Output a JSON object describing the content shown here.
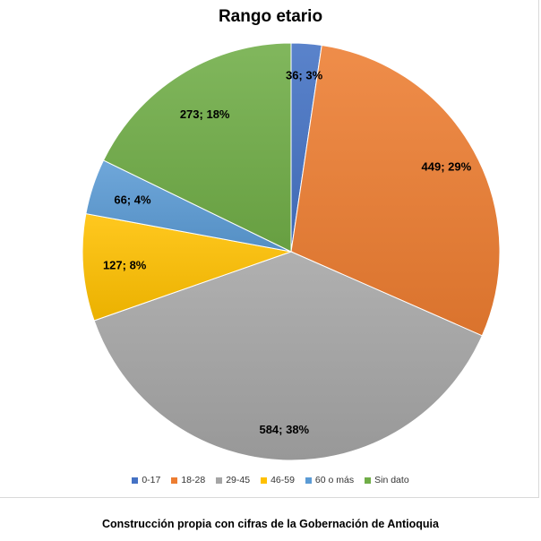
{
  "chart_data": {
    "type": "pie",
    "title": "Rango etario",
    "categories": [
      "0-17",
      "18-28",
      "29-45",
      "46-59",
      "60 o más",
      "Sin dato"
    ],
    "values": [
      36,
      449,
      584,
      127,
      66,
      273
    ],
    "percentages": [
      3,
      29,
      38,
      8,
      4,
      18
    ],
    "data_labels": [
      "36; 3%",
      "449; 29%",
      "584; 38%",
      "127; 8%",
      "66; 4%",
      "273; 18%"
    ],
    "colors": [
      "#4472c4",
      "#ed7d31",
      "#a5a5a5",
      "#ffc000",
      "#5b9bd5",
      "#70ad47"
    ],
    "legend_position": "bottom"
  },
  "caption": "Construcción propia con cifras de la Gobernación de Antioquia"
}
